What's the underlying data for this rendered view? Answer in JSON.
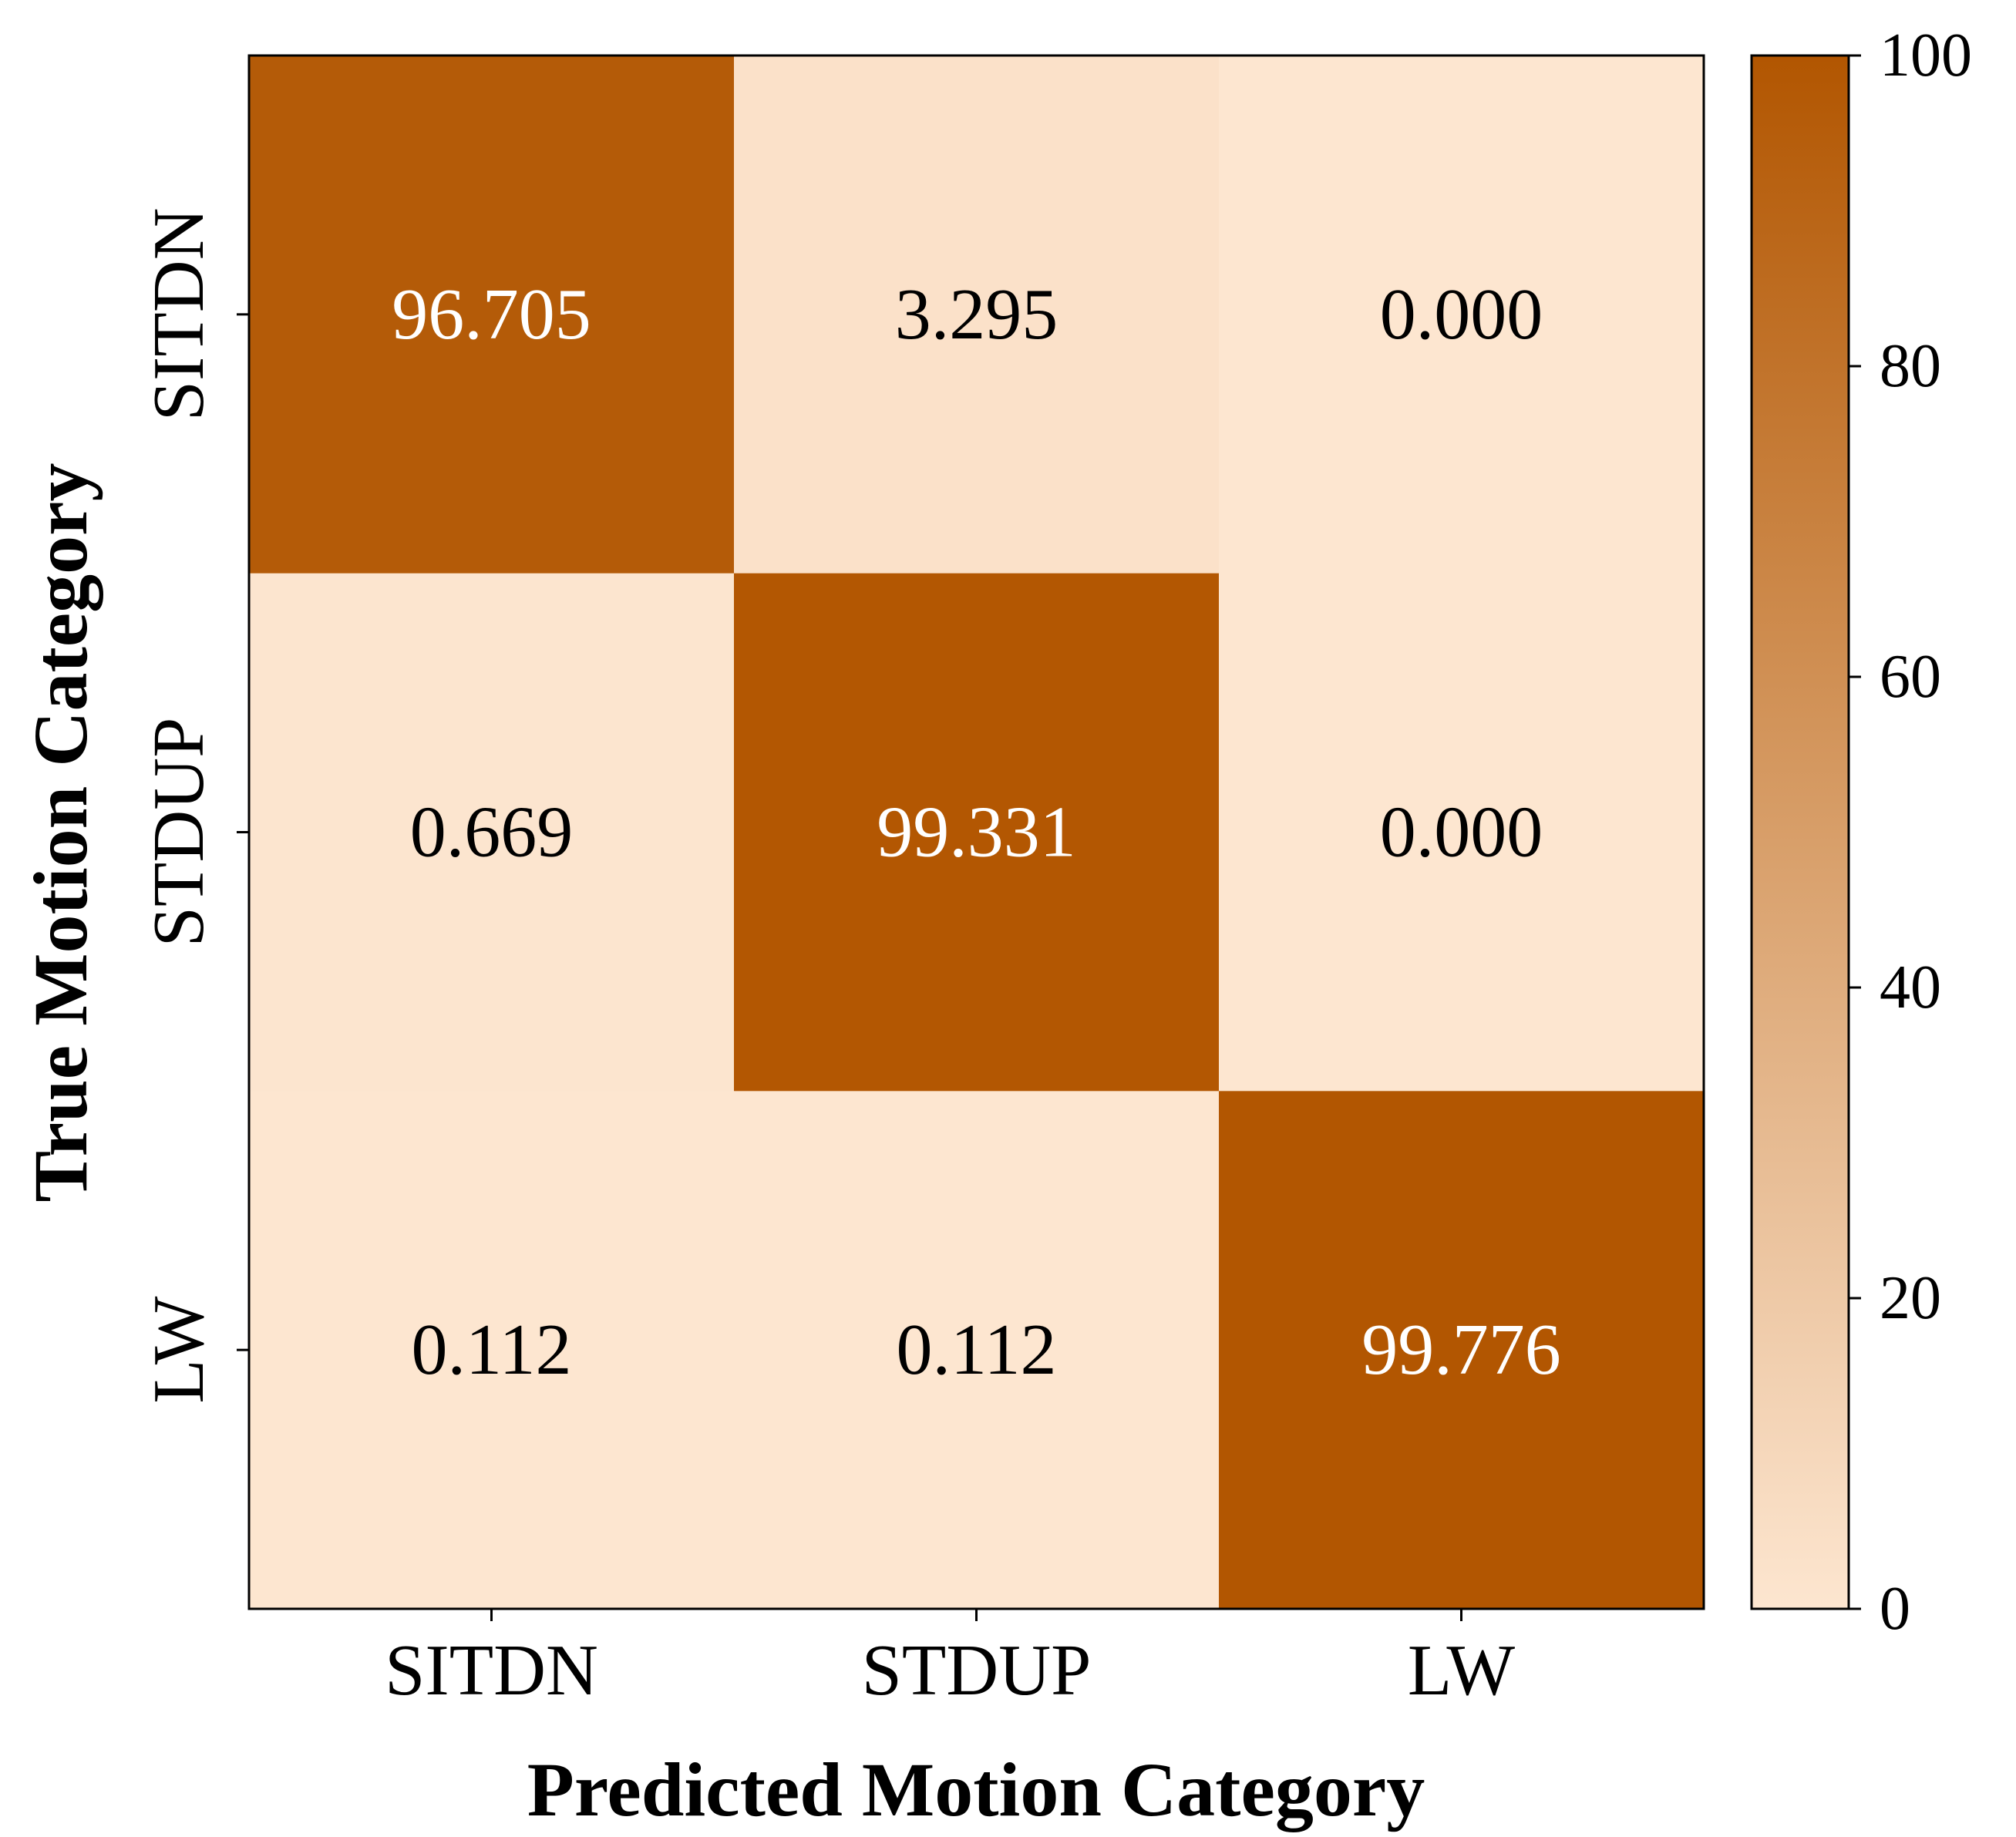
{
  "chart_data": {
    "type": "heatmap",
    "title": "",
    "xlabel": "Predicted Motion Category",
    "ylabel": "True Motion Category",
    "x_categories": [
      "SITDN",
      "STDUP",
      "LW"
    ],
    "y_categories": [
      "SITDN",
      "STDUP",
      "LW"
    ],
    "values": [
      [
        96.705,
        3.295,
        0.0
      ],
      [
        0.669,
        99.331,
        0.0
      ],
      [
        0.112,
        0.112,
        99.776
      ]
    ],
    "value_labels": [
      [
        "96.705",
        "3.295",
        "0.000"
      ],
      [
        "0.669",
        "99.331",
        "0.000"
      ],
      [
        "0.112",
        "0.112",
        "99.776"
      ]
    ],
    "colorbar": {
      "range": [
        0,
        100
      ],
      "ticks": [
        0,
        20,
        40,
        60,
        80,
        100
      ],
      "tick_labels": [
        "0",
        "20",
        "40",
        "60",
        "80",
        "100"
      ],
      "low_color": "#fde6d0",
      "high_color": "#b25601"
    },
    "text_colors": {
      "on_dark": "#ffffff",
      "on_light": "#000000"
    },
    "grid": false
  }
}
